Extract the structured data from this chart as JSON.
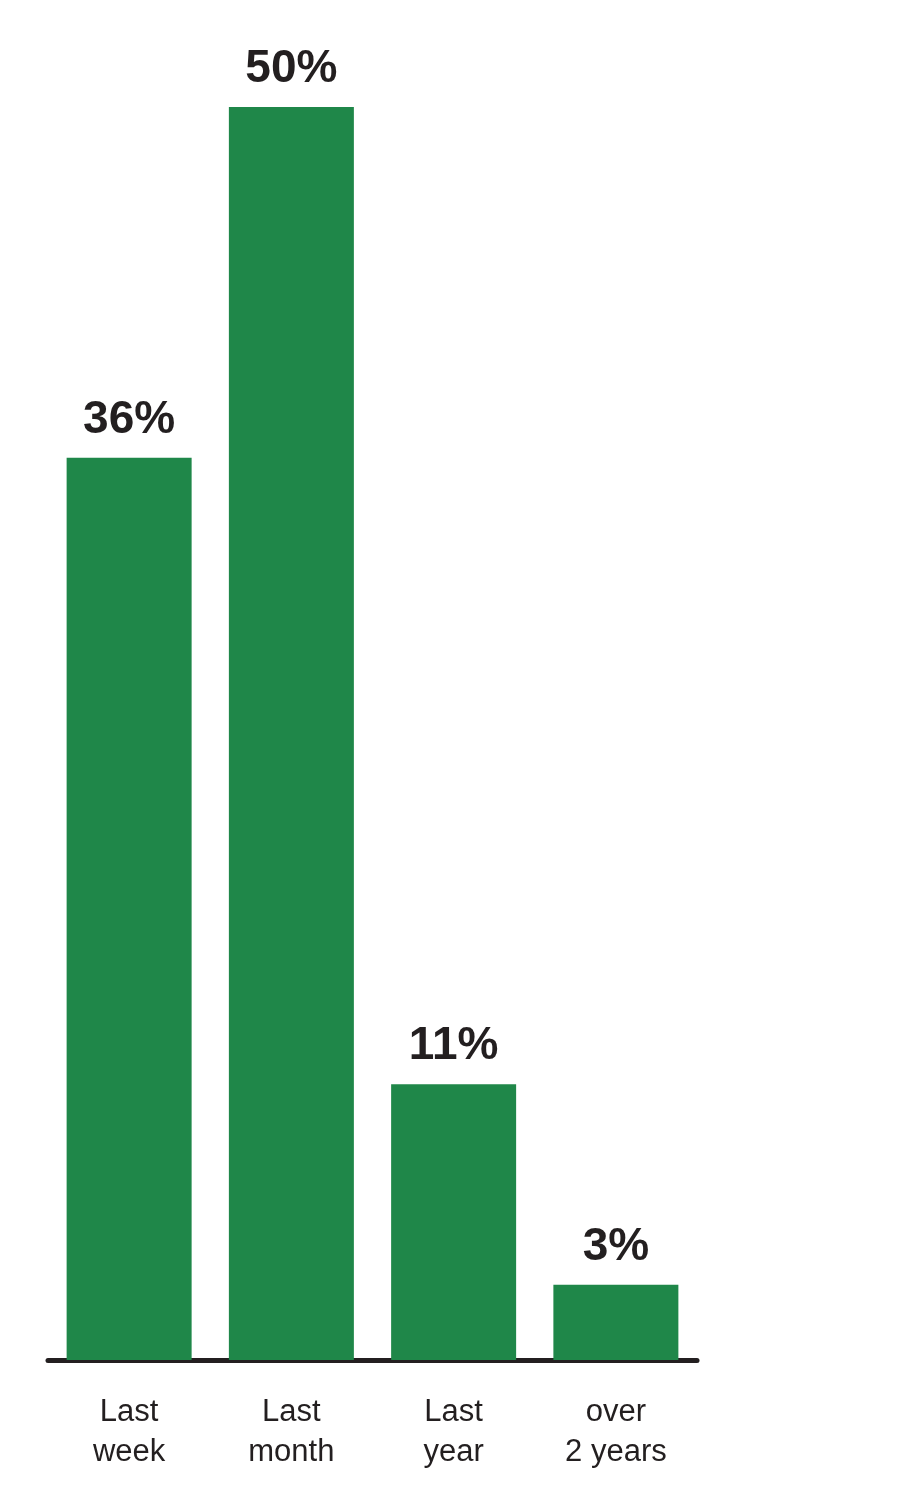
{
  "chart_data": {
    "type": "bar",
    "categories": [
      "Last\nweek",
      "Last\nmonth",
      "Last\nyear",
      "over\n2 years"
    ],
    "values": [
      36,
      50,
      11,
      3
    ],
    "color": "#1f8749",
    "value_labels": [
      "36%",
      "50%",
      "11%",
      "3%"
    ]
  }
}
